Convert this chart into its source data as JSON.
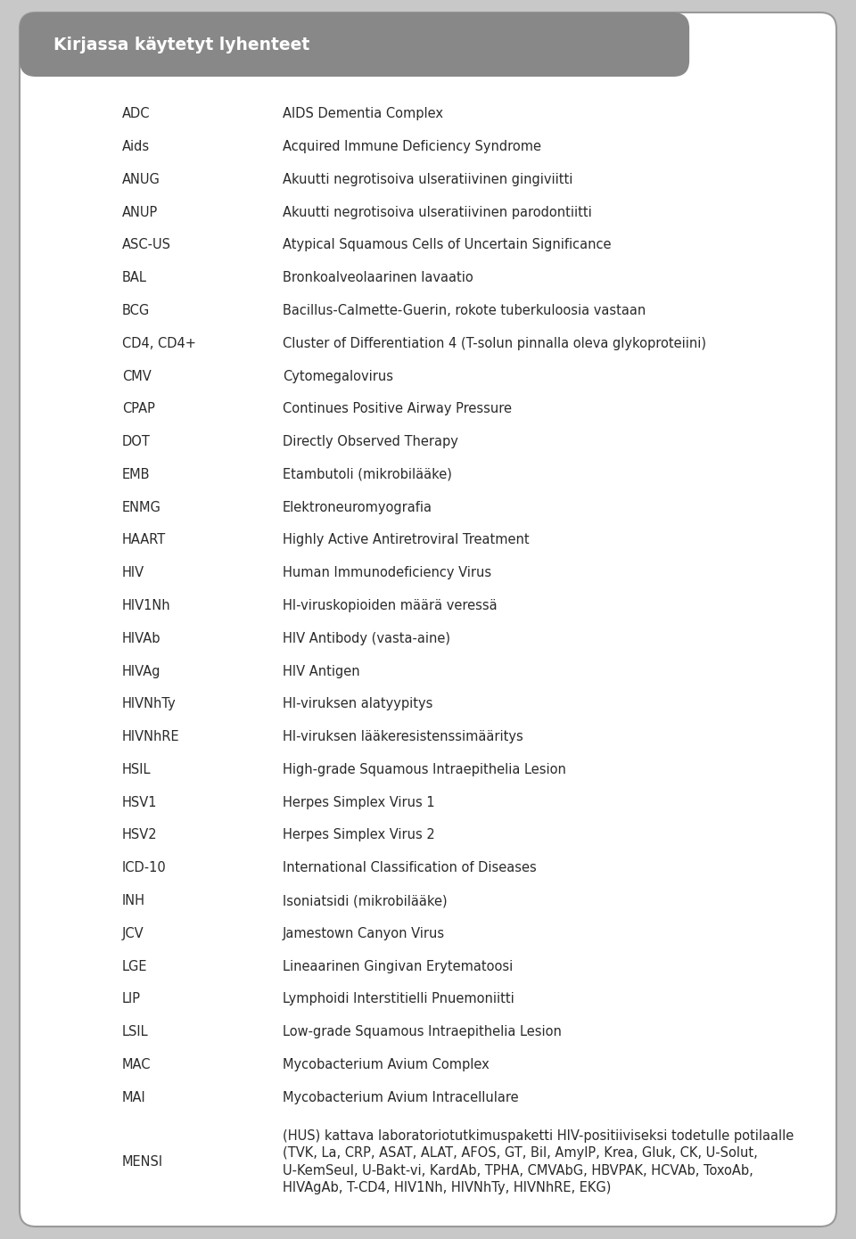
{
  "title": "Kirjassa käytetyt lyhenteet",
  "title_bg_color": "#888888",
  "title_text_color": "#ffffff",
  "page_bg_color": "#c8c8c8",
  "card_bg_color": "#ffffff",
  "border_color": "#999999",
  "text_color": "#2a2a2a",
  "font_size": 10.5,
  "title_font_size": 13.5,
  "entries": [
    [
      "ADC",
      "AIDS Dementia Complex"
    ],
    [
      "Aids",
      "Acquired Immune Deficiency Syndrome"
    ],
    [
      "ANUG",
      "Akuutti negrotisoiva ulseratiivinen gingiviitti"
    ],
    [
      "ANUP",
      "Akuutti negrotisoiva ulseratiivinen parodontiitti"
    ],
    [
      "ASC-US",
      "Atypical Squamous Cells of Uncertain Significance"
    ],
    [
      "BAL",
      "Bronkoalveolaarinen lavaatio"
    ],
    [
      "BCG",
      "Bacillus-Calmette-Guerin, rokote tuberkuloosia vastaan"
    ],
    [
      "CD4, CD4+",
      "Cluster of Differentiation 4 (T-solun pinnalla oleva glykoproteiini)"
    ],
    [
      "CMV",
      "Cytomegalovirus"
    ],
    [
      "CPAP",
      "Continues Positive Airway Pressure"
    ],
    [
      "DOT",
      "Directly Observed Therapy"
    ],
    [
      "EMB",
      "Etambutoli (mikrobilääke)"
    ],
    [
      "ENMG",
      "Elektroneuromyografia"
    ],
    [
      "HAART",
      "Highly Active Antiretroviral Treatment"
    ],
    [
      "HIV",
      "Human Immunodeficiency Virus"
    ],
    [
      "HIV1Nh",
      "HI-viruskopioiden määrä veressä"
    ],
    [
      "HIVAb",
      "HIV Antibody (vasta-aine)"
    ],
    [
      "HIVAg",
      "HIV Antigen"
    ],
    [
      "HIVNhTy",
      "HI-viruksen alatyypitys"
    ],
    [
      "HIVNhRE",
      "HI-viruksen lääkeresistenssimääritys"
    ],
    [
      "HSIL",
      "High-grade Squamous Intraepithelia Lesion"
    ],
    [
      "HSV1",
      "Herpes Simplex Virus 1"
    ],
    [
      "HSV2",
      "Herpes Simplex Virus 2"
    ],
    [
      "ICD-10",
      "International Classification of Diseases"
    ],
    [
      "INH",
      "Isoniatsidi (mikrobilääke)"
    ],
    [
      "JCV",
      "Jamestown Canyon Virus"
    ],
    [
      "LGE",
      "Lineaarinen Gingivan Erytematoosi"
    ],
    [
      "LIP",
      "Lymphoidi Interstitielli Pnuemoniitti"
    ],
    [
      "LSIL",
      "Low-grade Squamous Intraepithelia Lesion"
    ],
    [
      "MAC",
      "Mycobacterium Avium Complex"
    ],
    [
      "MAI",
      "Mycobacterium Avium Intracellulare"
    ],
    [
      "MENSI",
      "(HUS) kattava laboratoriotutkimuspaketti HIV-positiiviseksi todetulle potilaalle\n(TVK, La, CRP, ASAT, ALAT, AFOS, GT, Bil, AmylP, Krea, Gluk, CK, U-Solut,\nU-KemSeul, U-Bakt-vi, KardAb, TPHA, CMVAbG, HBVPAK, HCVAb, ToxoAb,\nHIVAgAb, T-CD4, HIV1Nh, HIVNhTy, HIVNhRE, EKG)"
    ]
  ]
}
